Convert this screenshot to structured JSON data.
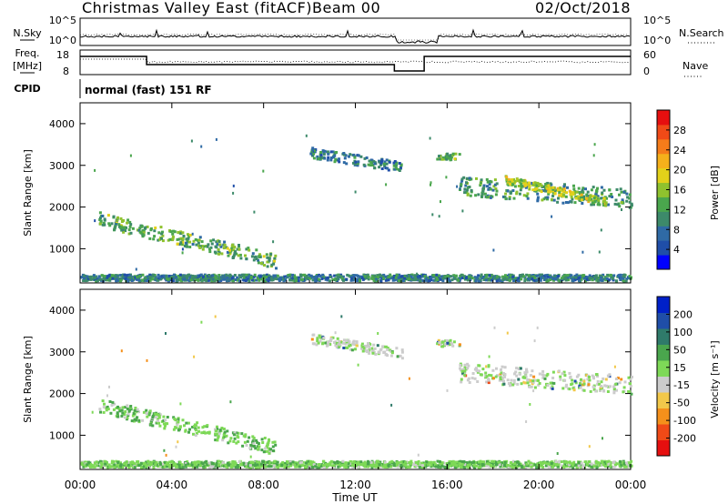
{
  "header": {
    "title": "Christmas Valley East (fitACF)",
    "beam": "Beam 00",
    "date": "02/Oct/2018"
  },
  "noise_panel": {
    "left_label": "N.Sky",
    "right_label": "N.Search",
    "left_ticks": [
      "10^5",
      "10^0"
    ],
    "right_ticks": [
      "10^5",
      "10^0"
    ]
  },
  "freq_panel": {
    "left_label_line1": "Freq.",
    "left_label_line2": "[MHz]",
    "right_label": "Nave",
    "left_ticks": [
      "18",
      "8"
    ],
    "right_ticks": [
      "60",
      "0"
    ]
  },
  "cpid": {
    "label": "CPID",
    "text": "normal (fast) 151 RF"
  },
  "x_axis": {
    "label": "Time UT",
    "ticks": [
      "00:00",
      "04:00",
      "08:00",
      "12:00",
      "16:00",
      "20:00",
      "00:00"
    ]
  },
  "colors": {
    "power": [
      "#0000ff",
      "#1f4ea8",
      "#2f6aa5",
      "#3d8a6a",
      "#4aa64d",
      "#8fc22e",
      "#e2d11a",
      "#f5b01b",
      "#f57c1a",
      "#f04a17",
      "#e60f0f"
    ],
    "velocity_neg": [
      "#e60f0f",
      "#f04a17",
      "#f5901b",
      "#f2c84a",
      "#cccccc"
    ],
    "velocity_pos": [
      "#cccccc",
      "#7ed957",
      "#4aa64d",
      "#2f7a6a",
      "#1f4ea8",
      "#0020c8"
    ]
  },
  "chart_data": [
    {
      "type": "heatmap",
      "title": "Power",
      "ylabel": "Slant Range [km]",
      "xlabel": "",
      "x_range_hours": [
        0,
        24
      ],
      "ylim": [
        180,
        4500
      ],
      "yticks": [
        1000,
        2000,
        3000,
        4000
      ],
      "colorbar": {
        "label": "Power [dB]",
        "ticks": [
          4,
          8,
          12,
          16,
          20,
          24,
          28
        ],
        "range": [
          0,
          30
        ]
      },
      "scatter_regions": [
        {
          "t_start": 0.8,
          "t_end": 8.5,
          "r_start": 1700,
          "r_end": 700,
          "thickness": 350,
          "level": 12
        },
        {
          "t_start": 10.0,
          "t_end": 14.0,
          "r_start": 3300,
          "r_end": 2950,
          "thickness": 250,
          "level": 8
        },
        {
          "t_start": 15.5,
          "t_end": 16.5,
          "r_start": 3200,
          "r_end": 3200,
          "thickness": 150,
          "level": 12
        },
        {
          "t_start": 16.5,
          "t_end": 24.0,
          "r_start": 2500,
          "r_end": 2200,
          "thickness": 450,
          "level": 10
        },
        {
          "t_start": 18.5,
          "t_end": 23.0,
          "r_start": 2650,
          "r_end": 2100,
          "thickness": 200,
          "level": 16
        },
        {
          "t_start": 0.0,
          "t_end": 24.0,
          "r_start": 300,
          "r_end": 300,
          "thickness": 150,
          "level": 8
        }
      ]
    },
    {
      "type": "heatmap",
      "title": "Velocity",
      "ylabel": "Slant Range [km]",
      "xlabel": "Time UT",
      "x_range_hours": [
        0,
        24
      ],
      "ylim": [
        180,
        4500
      ],
      "yticks": [
        1000,
        2000,
        3000,
        4000
      ],
      "colorbar": {
        "label": "Velocity [m s⁻¹]",
        "ticks": [
          "200",
          "100",
          "50",
          "15",
          "-15",
          "-50",
          "-100",
          "-200"
        ]
      },
      "scatter_regions": [
        {
          "t_start": 0.8,
          "t_end": 8.5,
          "r_start": 1700,
          "r_end": 700,
          "thickness": 350,
          "level": 30
        },
        {
          "t_start": 10.0,
          "t_end": 14.0,
          "r_start": 3300,
          "r_end": 2950,
          "thickness": 250,
          "level": 0
        },
        {
          "t_start": 15.5,
          "t_end": 16.5,
          "r_start": 3200,
          "r_end": 3200,
          "thickness": 150,
          "level": 0
        },
        {
          "t_start": 16.5,
          "t_end": 24.0,
          "r_start": 2500,
          "r_end": 2200,
          "thickness": 450,
          "level": 0
        },
        {
          "t_start": 0.0,
          "t_end": 24.0,
          "r_start": 300,
          "r_end": 300,
          "thickness": 150,
          "level": 30
        }
      ]
    }
  ]
}
